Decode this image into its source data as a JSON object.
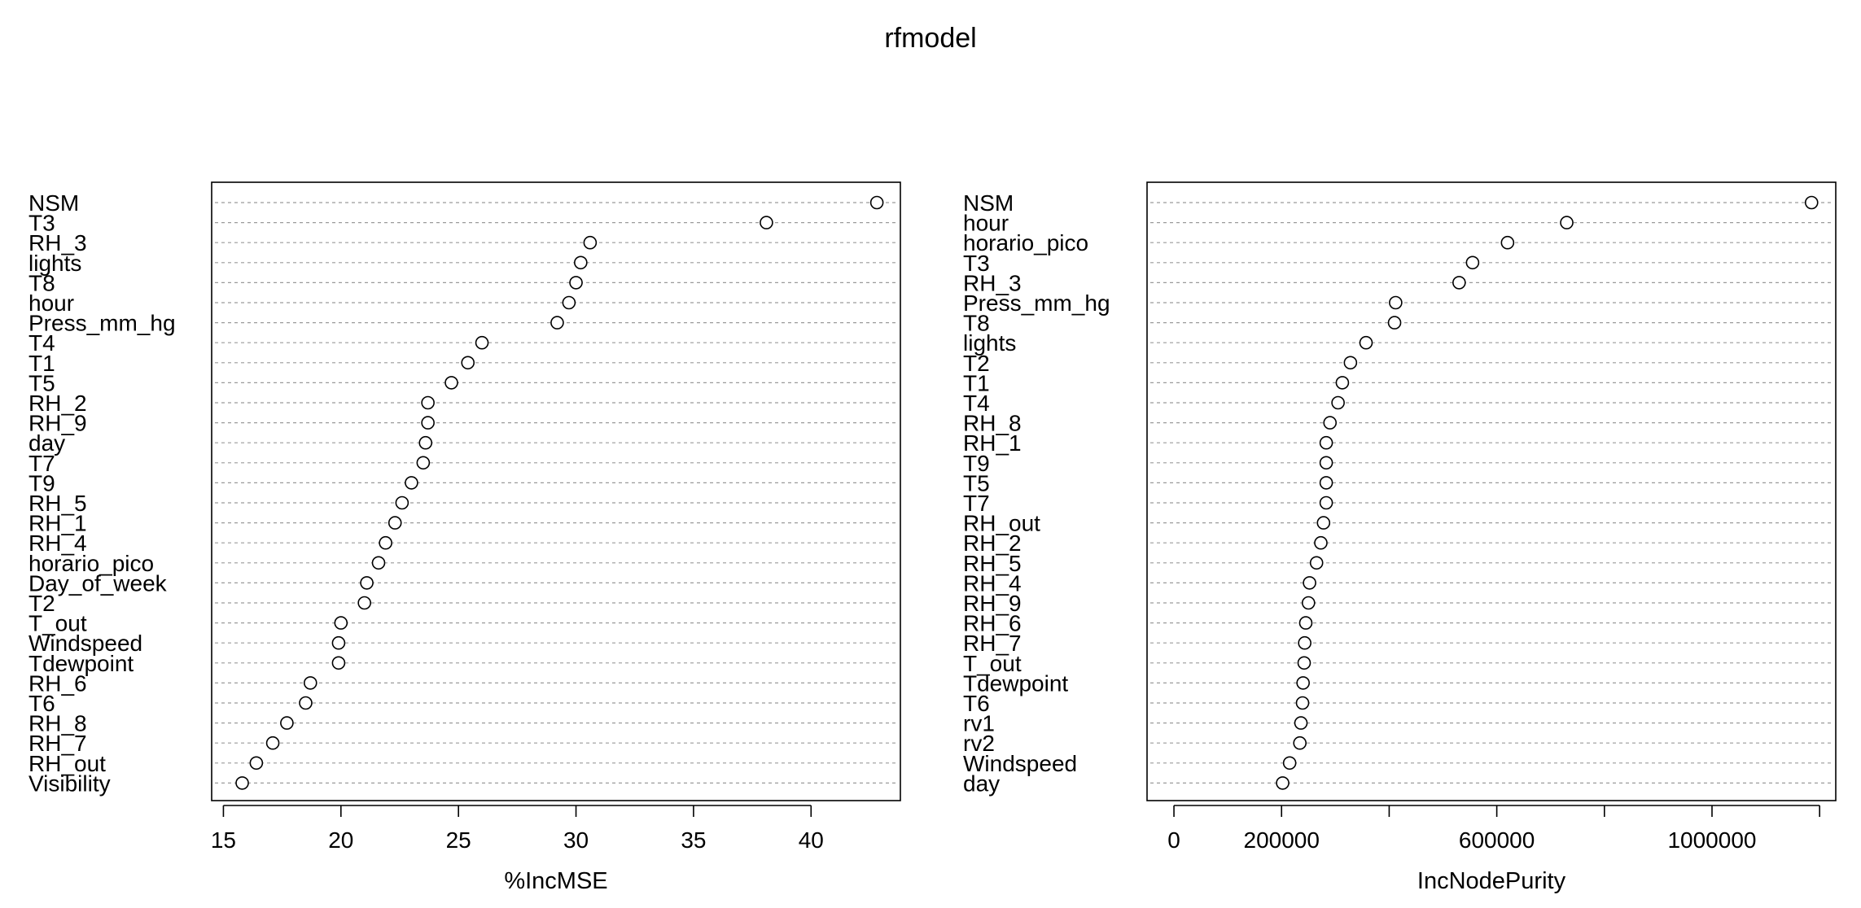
{
  "title": "rfmodel",
  "chart_data": [
    {
      "type": "scatter",
      "xlabel": "%IncMSE",
      "xlim": [
        14.5,
        43.8
      ],
      "xticks": [
        15,
        20,
        25,
        30,
        35,
        40
      ],
      "xtick_labels": [
        "15",
        "20",
        "25",
        "30",
        "35",
        "40"
      ],
      "grid": "dotted horizontal",
      "categories": [
        "NSM",
        "T3",
        "RH_3",
        "lights",
        "T8",
        "hour",
        "Press_mm_hg",
        "T4",
        "T1",
        "T5",
        "RH_2",
        "RH_9",
        "day",
        "T7",
        "T9",
        "RH_5",
        "RH_1",
        "RH_4",
        "horario_pico",
        "Day_of_week",
        "T2",
        "T_out",
        "Windspeed",
        "Tdewpoint",
        "RH_6",
        "T6",
        "RH_8",
        "RH_7",
        "RH_out",
        "Visibility"
      ],
      "values": [
        42.8,
        38.1,
        30.6,
        30.2,
        30.0,
        29.7,
        29.2,
        26.0,
        25.4,
        24.7,
        23.7,
        23.7,
        23.6,
        23.5,
        23.0,
        22.6,
        22.3,
        21.9,
        21.6,
        21.1,
        21.0,
        20.0,
        19.9,
        19.9,
        18.7,
        18.5,
        17.7,
        17.1,
        16.4,
        15.8
      ]
    },
    {
      "type": "scatter",
      "xlabel": "IncNodePurity",
      "xlim": [
        -50000,
        1230000
      ],
      "xticks": [
        0,
        200000,
        400000,
        600000,
        800000,
        1000000,
        1200000
      ],
      "xtick_labels": [
        "0",
        "200000",
        "",
        "600000",
        "",
        "1000000",
        ""
      ],
      "grid": "dotted horizontal",
      "categories": [
        "NSM",
        "hour",
        "horario_pico",
        "T3",
        "RH_3",
        "Press_mm_hg",
        "T8",
        "lights",
        "T2",
        "T1",
        "T4",
        "RH_8",
        "RH_1",
        "T9",
        "T5",
        "T7",
        "RH_out",
        "RH_2",
        "RH_5",
        "RH_4",
        "RH_9",
        "RH_6",
        "RH_7",
        "T_out",
        "Tdewpoint",
        "T6",
        "rv1",
        "rv2",
        "Windspeed",
        "day"
      ],
      "values": [
        1185000,
        730000,
        620000,
        555000,
        530000,
        412000,
        410000,
        357000,
        328000,
        313000,
        305000,
        290000,
        283000,
        283000,
        283000,
        283000,
        278000,
        273000,
        265000,
        252000,
        250000,
        245000,
        243000,
        242000,
        240000,
        239000,
        236000,
        234000,
        215000,
        202000
      ]
    }
  ]
}
